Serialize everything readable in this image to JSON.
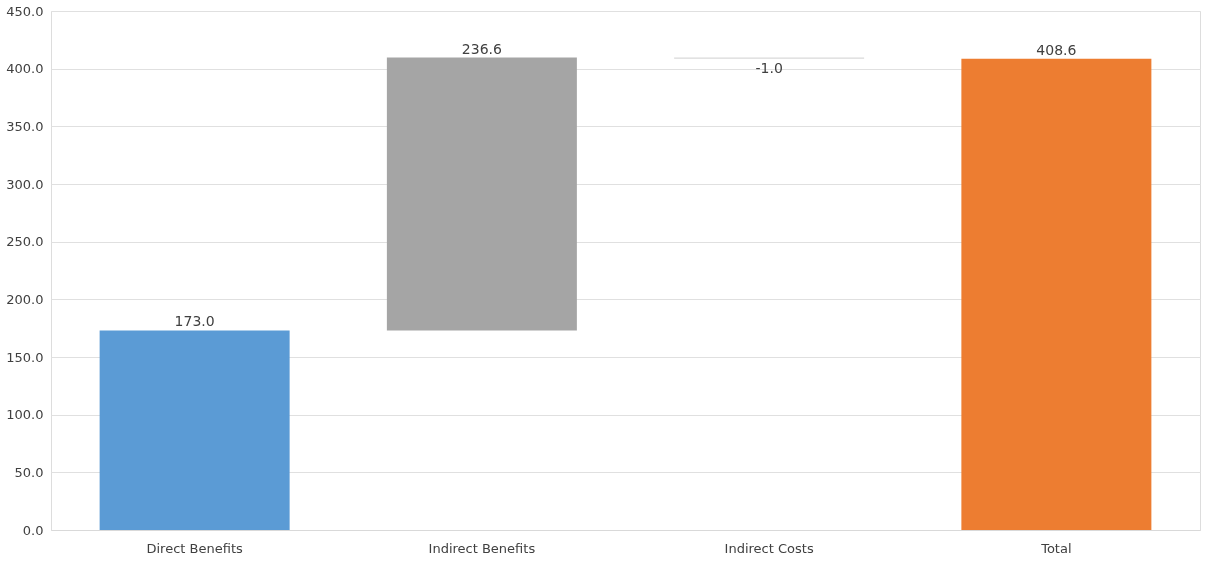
{
  "chart_data": {
    "type": "bar",
    "categories": [
      "Direct Benefits",
      "Indirect Benefits",
      "Indirect Costs",
      "Total"
    ],
    "values": [
      173.0,
      236.6,
      -1.0,
      408.6
    ],
    "base": [
      0,
      173.0,
      409.6,
      0
    ],
    "colors": [
      "#5b9bd5",
      "#a5a5a5",
      "#d9d9d9",
      "#ed7d31"
    ],
    "ylim": [
      0,
      450
    ],
    "yticks": [
      {
        "value": 0,
        "label": "0.0"
      },
      {
        "value": 50,
        "label": "50.0"
      },
      {
        "value": 100,
        "label": "100.0"
      },
      {
        "value": 150,
        "label": "150.0"
      },
      {
        "value": 200,
        "label": "200.0"
      },
      {
        "value": 250,
        "label": "250.0"
      },
      {
        "value": 300,
        "label": "300.0"
      },
      {
        "value": 350,
        "label": "350.0"
      },
      {
        "value": 400,
        "label": "400.0"
      },
      {
        "value": 450,
        "label": "450.0"
      }
    ],
    "value_labels": [
      "173.0",
      "236.6",
      "-1.0",
      "408.6"
    ],
    "grid": "y"
  }
}
